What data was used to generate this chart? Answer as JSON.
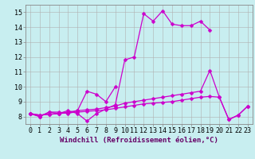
{
  "xlabel": "Windchill (Refroidissement éolien,°C)",
  "x": [
    0,
    1,
    2,
    3,
    4,
    5,
    6,
    7,
    8,
    9,
    10,
    11,
    12,
    13,
    14,
    15,
    16,
    17,
    18,
    19,
    20,
    21,
    22,
    23
  ],
  "line1": [
    8.2,
    8.0,
    8.3,
    8.2,
    8.4,
    8.2,
    7.7,
    8.2,
    8.5,
    8.8,
    11.8,
    12.0,
    14.9,
    14.4,
    15.1,
    14.2,
    14.1,
    14.1,
    14.4,
    13.8,
    null,
    null,
    null,
    null
  ],
  "line2": [
    8.2,
    8.0,
    8.3,
    8.3,
    8.2,
    8.4,
    9.7,
    9.5,
    9.0,
    10.0,
    null,
    null,
    null,
    null,
    null,
    null,
    null,
    null,
    null,
    null,
    null,
    null,
    null,
    null
  ],
  "line3": [
    8.2,
    8.1,
    8.15,
    8.2,
    8.3,
    8.4,
    8.45,
    8.5,
    8.6,
    8.7,
    8.9,
    9.0,
    9.1,
    9.2,
    9.3,
    9.4,
    9.5,
    9.6,
    9.7,
    11.1,
    9.3,
    7.8,
    8.1,
    8.7
  ],
  "line4": [
    8.2,
    8.1,
    8.15,
    8.2,
    8.25,
    8.3,
    8.35,
    8.4,
    8.45,
    8.55,
    8.65,
    8.75,
    8.85,
    8.9,
    8.95,
    9.0,
    9.1,
    9.2,
    9.3,
    9.35,
    9.3,
    7.8,
    8.1,
    8.7
  ],
  "line_color": "#cc00cc",
  "marker": "D",
  "marker_size": 2.5,
  "bg_color": "#c8eef0",
  "grid_color": "#b0b0b0",
  "ylim": [
    7.5,
    15.5
  ],
  "xlim": [
    -0.5,
    23.5
  ],
  "yticks": [
    8,
    9,
    10,
    11,
    12,
    13,
    14,
    15
  ],
  "xticks": [
    0,
    1,
    2,
    3,
    4,
    5,
    6,
    7,
    8,
    9,
    10,
    11,
    12,
    13,
    14,
    15,
    16,
    17,
    18,
    19,
    20,
    21,
    22,
    23
  ],
  "label_fontsize": 6.5,
  "tick_fontsize": 6.0,
  "linewidth": 0.9
}
